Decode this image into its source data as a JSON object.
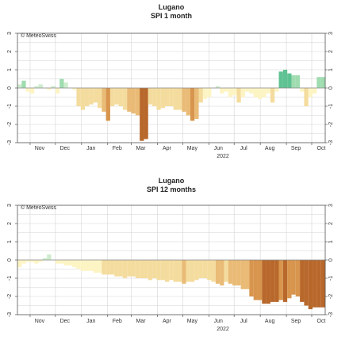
{
  "credit": "© MeteoSwiss",
  "year_label": "2022",
  "colors": {
    "wet_light": "#cdeccd",
    "wet_mid": "#9fdcb0",
    "wet_dark": "#5fc293",
    "dry_1": "#fdf4c4",
    "dry_2": "#f4dc9e",
    "dry_3": "#e9bb76",
    "dry_4": "#d8954d",
    "dry_5": "#b8682b",
    "grid": "#d4d4d4",
    "frame": "#555555"
  },
  "chart_data": [
    {
      "type": "area",
      "title": "Lugano",
      "subtitle": "SPI 1 month",
      "xlabel": "2022",
      "ylabel": "",
      "ylim": [
        -3,
        3
      ],
      "yticks": [
        -3,
        -2,
        -1,
        0,
        1,
        2,
        3
      ],
      "x_range": [
        "2021-10-17",
        "2022-10-17"
      ],
      "month_labels": [
        "Nov",
        "Dec",
        "Jan",
        "Feb",
        "Mar",
        "Apr",
        "May",
        "Jun",
        "Jul",
        "Aug",
        "Sep",
        "Oct"
      ],
      "month_ticks": [
        "2021-11-01",
        "2021-12-01",
        "2022-01-01",
        "2022-02-01",
        "2022-03-01",
        "2022-04-01",
        "2022-05-01",
        "2022-06-01",
        "2022-07-01",
        "2022-08-01",
        "2022-09-01",
        "2022-10-01"
      ],
      "grid": true,
      "series": [
        {
          "x": [
            "2021-10-17",
            "2021-10-22",
            "2021-10-27",
            "2021-11-01",
            "2021-11-06",
            "2021-11-11",
            "2021-11-16",
            "2021-11-21",
            "2021-11-26",
            "2021-12-01",
            "2021-12-06",
            "2021-12-11",
            "2021-12-16",
            "2021-12-21",
            "2021-12-26",
            "2021-12-31",
            "2022-01-05",
            "2022-01-10",
            "2022-01-15",
            "2022-01-20",
            "2022-01-25",
            "2022-01-30",
            "2022-02-04",
            "2022-02-09",
            "2022-02-14",
            "2022-02-19",
            "2022-02-24",
            "2022-03-01",
            "2022-03-06",
            "2022-03-11",
            "2022-03-16",
            "2022-03-21",
            "2022-03-26",
            "2022-03-31",
            "2022-04-05",
            "2022-04-10",
            "2022-04-15",
            "2022-04-20",
            "2022-04-25",
            "2022-04-30",
            "2022-05-05",
            "2022-05-10",
            "2022-05-15",
            "2022-05-20",
            "2022-05-25",
            "2022-05-30",
            "2022-06-04",
            "2022-06-09",
            "2022-06-14",
            "2022-06-19",
            "2022-06-24",
            "2022-06-29",
            "2022-07-04",
            "2022-07-09",
            "2022-07-14",
            "2022-07-19",
            "2022-07-24",
            "2022-07-29",
            "2022-08-03",
            "2022-08-08",
            "2022-08-13",
            "2022-08-18",
            "2022-08-23",
            "2022-08-28",
            "2022-09-02",
            "2022-09-07",
            "2022-09-12",
            "2022-09-17",
            "2022-09-22",
            "2022-09-27",
            "2022-10-02",
            "2022-10-07",
            "2022-10-12",
            "2022-10-17"
          ],
          "values": [
            0.2,
            0.4,
            -0.2,
            -0.3,
            0.1,
            0.2,
            0.0,
            -0.1,
            0.1,
            -0.3,
            0.5,
            0.3,
            0.0,
            -0.1,
            -1.0,
            -1.2,
            -1.0,
            -0.9,
            -0.8,
            -1.1,
            -1.3,
            -1.8,
            -1.0,
            -0.9,
            -1.0,
            -1.2,
            -1.3,
            -1.4,
            -1.5,
            -2.9,
            -2.8,
            -0.9,
            -1.0,
            -1.2,
            -1.1,
            -1.0,
            -1.0,
            -1.2,
            -1.2,
            -1.3,
            -1.5,
            -1.8,
            -1.7,
            -0.8,
            -0.6,
            -0.5,
            0.0,
            0.1,
            -0.3,
            -0.2,
            -0.5,
            -0.4,
            -0.8,
            -0.5,
            -0.2,
            -0.3,
            -0.5,
            -0.6,
            -0.5,
            -0.3,
            -0.8,
            -0.2,
            0.9,
            1.0,
            0.8,
            0.7,
            0.7,
            -0.2,
            -1.0,
            -0.5,
            -0.3,
            0.6,
            0.6,
            0.6
          ]
        }
      ]
    },
    {
      "type": "area",
      "title": "Lugano",
      "subtitle": "SPI 12 months",
      "xlabel": "2022",
      "ylabel": "",
      "ylim": [
        -3,
        3
      ],
      "yticks": [
        -3,
        -2,
        -1,
        0,
        1,
        2,
        3
      ],
      "x_range": [
        "2021-10-17",
        "2022-10-17"
      ],
      "month_labels": [
        "Nov",
        "Dec",
        "Jan",
        "Feb",
        "Mar",
        "Apr",
        "May",
        "Jun",
        "Jul",
        "Aug",
        "Sep",
        "Oct"
      ],
      "month_ticks": [
        "2021-11-01",
        "2021-12-01",
        "2022-01-01",
        "2022-02-01",
        "2022-03-01",
        "2022-04-01",
        "2022-05-01",
        "2022-06-01",
        "2022-07-01",
        "2022-08-01",
        "2022-09-01",
        "2022-10-01"
      ],
      "grid": true,
      "series": [
        {
          "x": [
            "2021-10-17",
            "2021-10-22",
            "2021-10-27",
            "2021-11-01",
            "2021-11-06",
            "2021-11-11",
            "2021-11-16",
            "2021-11-21",
            "2021-11-26",
            "2021-12-01",
            "2021-12-06",
            "2021-12-11",
            "2021-12-16",
            "2021-12-21",
            "2021-12-26",
            "2021-12-31",
            "2022-01-05",
            "2022-01-10",
            "2022-01-15",
            "2022-01-20",
            "2022-01-25",
            "2022-01-30",
            "2022-02-04",
            "2022-02-09",
            "2022-02-14",
            "2022-02-19",
            "2022-02-24",
            "2022-03-01",
            "2022-03-06",
            "2022-03-11",
            "2022-03-16",
            "2022-03-21",
            "2022-03-26",
            "2022-03-31",
            "2022-04-05",
            "2022-04-10",
            "2022-04-15",
            "2022-04-20",
            "2022-04-25",
            "2022-04-30",
            "2022-05-05",
            "2022-05-10",
            "2022-05-15",
            "2022-05-20",
            "2022-05-25",
            "2022-05-30",
            "2022-06-04",
            "2022-06-09",
            "2022-06-14",
            "2022-06-19",
            "2022-06-24",
            "2022-06-29",
            "2022-07-04",
            "2022-07-09",
            "2022-07-14",
            "2022-07-19",
            "2022-07-24",
            "2022-07-29",
            "2022-08-03",
            "2022-08-08",
            "2022-08-13",
            "2022-08-18",
            "2022-08-23",
            "2022-08-28",
            "2022-09-02",
            "2022-09-07",
            "2022-09-12",
            "2022-09-17",
            "2022-09-22",
            "2022-09-27",
            "2022-10-02",
            "2022-10-07",
            "2022-10-12",
            "2022-10-17"
          ],
          "values": [
            -0.4,
            -0.2,
            -0.1,
            -0.1,
            -0.2,
            -0.1,
            0.1,
            0.3,
            0.0,
            -0.2,
            -0.2,
            -0.3,
            -0.3,
            -0.4,
            -0.5,
            -0.6,
            -0.6,
            -0.6,
            -0.7,
            -0.7,
            -0.8,
            -0.8,
            -0.8,
            -0.9,
            -0.9,
            -1.0,
            -0.9,
            -0.9,
            -1.0,
            -1.0,
            -1.0,
            -1.1,
            -1.0,
            -1.1,
            -1.1,
            -1.2,
            -1.1,
            -1.2,
            -1.2,
            -1.3,
            -1.2,
            -1.2,
            -1.1,
            -1.0,
            -1.0,
            -1.1,
            -1.2,
            -1.3,
            -1.4,
            -1.2,
            -1.3,
            -1.4,
            -1.4,
            -1.6,
            -1.6,
            -2.0,
            -2.2,
            -2.2,
            -2.4,
            -2.4,
            -2.3,
            -2.3,
            -2.2,
            -2.3,
            -2.1,
            -1.9,
            -2.0,
            -2.3,
            -2.5,
            -2.7,
            -2.6,
            -2.6,
            -2.6,
            -2.2
          ]
        }
      ]
    }
  ]
}
